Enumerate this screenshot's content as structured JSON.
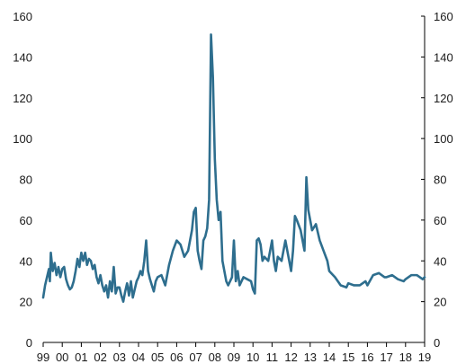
{
  "chart_data": {
    "type": "line",
    "title": "",
    "xlabel": "",
    "ylabel": "",
    "ylim": [
      0,
      160
    ],
    "xlim": [
      1999.0,
      2019.0
    ],
    "y_ticks": [
      0,
      20,
      40,
      60,
      80,
      100,
      120,
      140,
      160
    ],
    "y_tick_labels": [
      "0",
      "20",
      "40",
      "60",
      "80",
      "100",
      "120",
      "140",
      "160"
    ],
    "x_ticks": [
      1999,
      2000,
      2001,
      2002,
      2003,
      2004,
      2005,
      2006,
      2007,
      2008,
      2009,
      2010,
      2011,
      2012,
      2013,
      2014,
      2015,
      2016,
      2017,
      2018,
      2019
    ],
    "x_tick_labels": [
      "99",
      "00",
      "01",
      "02",
      "03",
      "04",
      "05",
      "06",
      "07",
      "08",
      "09",
      "10",
      "11",
      "12",
      "13",
      "14",
      "15",
      "16",
      "17",
      "18",
      "19"
    ],
    "grid": false,
    "right_axis_mirrors_left": true,
    "series_color": "#2e6e8e",
    "series": [
      {
        "x": [
          1999.0,
          1999.1,
          1999.2,
          1999.3,
          1999.35,
          1999.4,
          1999.5,
          1999.6,
          1999.7,
          1999.8,
          1999.9,
          2000.0,
          2000.1,
          2000.2,
          2000.3,
          2000.4,
          2000.5,
          2000.6,
          2000.7,
          2000.8,
          2000.9,
          2001.0,
          2001.1,
          2001.2,
          2001.3,
          2001.4,
          2001.5,
          2001.6,
          2001.7,
          2001.8,
          2001.9,
          2002.0,
          2002.1,
          2002.2,
          2002.3,
          2002.4,
          2002.5,
          2002.6,
          2002.7,
          2002.8,
          2002.9,
          2003.0,
          2003.1,
          2003.2,
          2003.3,
          2003.4,
          2003.5,
          2003.6,
          2003.7,
          2003.8,
          2003.9,
          2004.0,
          2004.1,
          2004.2,
          2004.3,
          2004.4,
          2004.5,
          2004.6,
          2004.7,
          2004.8,
          2004.9,
          2005.0,
          2005.2,
          2005.4,
          2005.6,
          2005.8,
          2006.0,
          2006.2,
          2006.4,
          2006.6,
          2006.8,
          2006.9,
          2007.0,
          2007.1,
          2007.2,
          2007.3,
          2007.4,
          2007.5,
          2007.6,
          2007.7,
          2007.8,
          2007.9,
          2008.0,
          2008.1,
          2008.2,
          2008.3,
          2008.4,
          2008.5,
          2008.6,
          2008.7,
          2008.8,
          2008.9,
          2009.0,
          2009.1,
          2009.2,
          2009.3,
          2009.5,
          2009.7,
          2009.9,
          2010.0,
          2010.1,
          2010.2,
          2010.3,
          2010.4,
          2010.5,
          2010.6,
          2010.8,
          2011.0,
          2011.1,
          2011.2,
          2011.3,
          2011.5,
          2011.7,
          2011.9,
          2012.0,
          2012.1,
          2012.2,
          2012.3,
          2012.5,
          2012.7,
          2012.8,
          2012.9,
          2013.0,
          2013.1,
          2013.3,
          2013.5,
          2013.7,
          2013.9,
          2014.0,
          2014.3,
          2014.6,
          2014.9,
          2015.0,
          2015.3,
          2015.6,
          2015.9,
          2016.0,
          2016.3,
          2016.6,
          2016.9,
          2017.0,
          2017.3,
          2017.6,
          2017.9,
          2018.0,
          2018.3,
          2018.6,
          2018.9,
          2019.0
        ],
        "values": [
          22,
          28,
          32,
          36,
          30,
          44,
          35,
          39,
          33,
          37,
          32,
          36,
          37,
          31,
          28,
          26,
          27,
          30,
          35,
          41,
          37,
          44,
          40,
          44,
          38,
          41,
          40,
          36,
          38,
          32,
          29,
          33,
          28,
          25,
          28,
          22,
          30,
          25,
          37,
          24,
          27,
          27,
          23,
          20,
          25,
          29,
          23,
          30,
          22,
          26,
          30,
          32,
          35,
          33,
          40,
          50,
          35,
          31,
          28,
          25,
          30,
          32,
          33,
          28,
          38,
          45,
          50,
          48,
          42,
          45,
          55,
          64,
          66,
          45,
          40,
          36,
          50,
          52,
          56,
          70,
          151,
          130,
          90,
          70,
          60,
          64,
          40,
          35,
          30,
          28,
          30,
          32,
          50,
          30,
          35,
          28,
          32,
          31,
          30,
          26,
          24,
          50,
          51,
          48,
          40,
          42,
          40,
          50,
          40,
          35,
          42,
          40,
          50,
          40,
          35,
          45,
          62,
          60,
          55,
          45,
          81,
          65,
          60,
          55,
          58,
          50,
          45,
          40,
          35,
          32,
          28,
          27,
          29,
          28,
          28,
          30,
          28,
          33,
          34,
          32,
          32,
          33,
          31,
          30,
          31,
          33,
          33,
          31,
          32
        ]
      }
    ]
  }
}
